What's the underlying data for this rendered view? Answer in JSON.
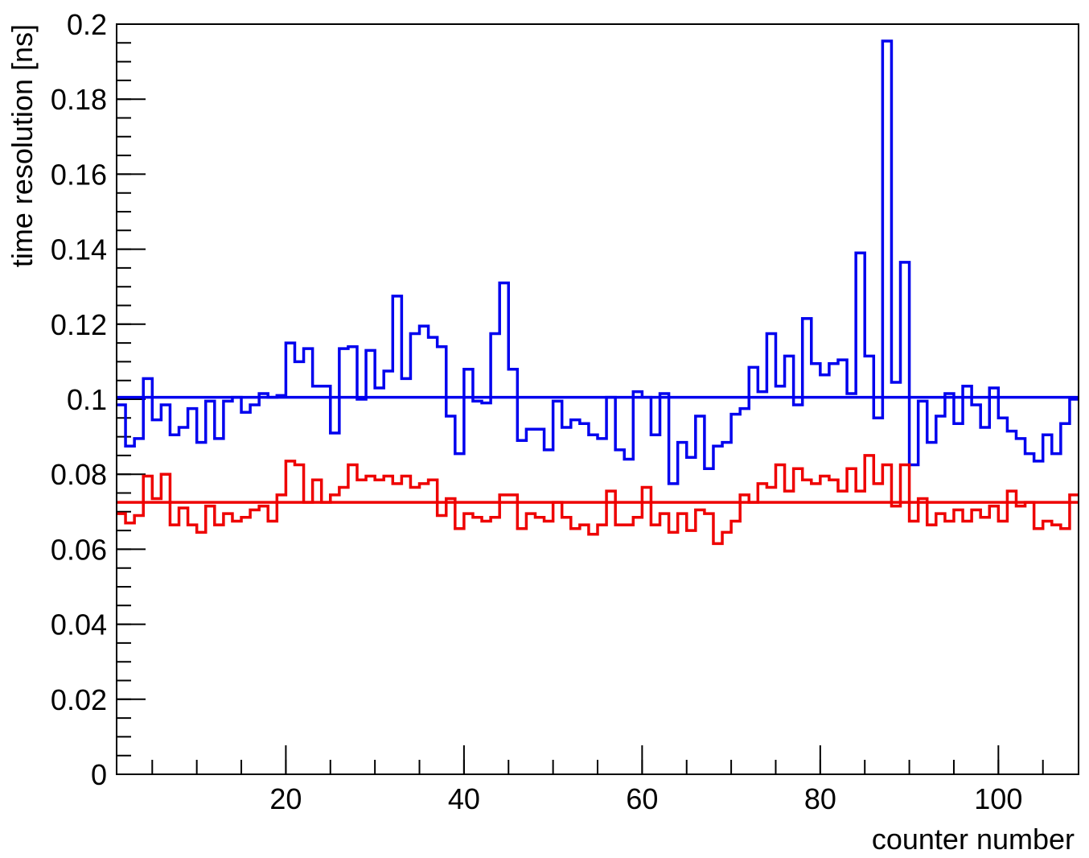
{
  "chart_data": {
    "type": "histogram",
    "xlabel": "counter number",
    "ylabel": "time resolution [ns]",
    "xlim": [
      1,
      109
    ],
    "ylim": [
      0,
      0.2
    ],
    "x_tick_labels": [
      "20",
      "40",
      "60",
      "80",
      "100"
    ],
    "x_ticks": [
      20,
      40,
      60,
      80,
      100
    ],
    "y_tick_labels": [
      "0",
      "0.02",
      "0.04",
      "0.06",
      "0.08",
      "0.1",
      "0.12",
      "0.14",
      "0.16",
      "0.18",
      "0.2"
    ],
    "y_ticks": [
      0,
      0.02,
      0.04,
      0.06,
      0.08,
      0.1,
      0.12,
      0.14,
      0.16,
      0.18,
      0.2
    ],
    "bin_start": 1,
    "bin_width": 1,
    "grid": false,
    "legend": "none",
    "series": [
      {
        "color": "#0000ee",
        "values": [
          0.0985,
          0.0875,
          0.0895,
          0.1055,
          0.0945,
          0.0985,
          0.0905,
          0.0925,
          0.0975,
          0.0885,
          0.0995,
          0.0895,
          0.0995,
          0.1005,
          0.0965,
          0.0985,
          0.1015,
          0.1005,
          0.101,
          0.115,
          0.11,
          0.1135,
          0.1035,
          0.1035,
          0.091,
          0.1135,
          0.114,
          0.1,
          0.113,
          0.103,
          0.1075,
          0.1275,
          0.1055,
          0.1175,
          0.1195,
          0.1165,
          0.114,
          0.0955,
          0.0855,
          0.108,
          0.0995,
          0.099,
          0.1175,
          0.131,
          0.108,
          0.089,
          0.092,
          0.092,
          0.0865,
          0.0995,
          0.0925,
          0.0945,
          0.0935,
          0.0905,
          0.0895,
          0.1005,
          0.0865,
          0.084,
          0.102,
          0.1005,
          0.0905,
          0.1015,
          0.0775,
          0.0885,
          0.0845,
          0.0955,
          0.0815,
          0.0875,
          0.0885,
          0.096,
          0.0975,
          0.1085,
          0.102,
          0.1175,
          0.1035,
          0.1115,
          0.0985,
          0.1215,
          0.1095,
          0.1065,
          0.1095,
          0.1105,
          0.1015,
          0.139,
          0.1115,
          0.095,
          0.1955,
          0.1045,
          0.1365,
          0.0825,
          0.0995,
          0.0885,
          0.0955,
          0.1015,
          0.0935,
          0.1035,
          0.0985,
          0.0925,
          0.103,
          0.095,
          0.0915,
          0.0895,
          0.0855,
          0.0835,
          0.0905,
          0.0855,
          0.0935,
          0.1
        ]
      },
      {
        "color": "#ee0000",
        "values": [
          0.0695,
          0.067,
          0.069,
          0.0795,
          0.0735,
          0.08,
          0.0665,
          0.071,
          0.0665,
          0.0645,
          0.0715,
          0.0665,
          0.0695,
          0.0675,
          0.0685,
          0.0705,
          0.0715,
          0.0675,
          0.0745,
          0.0835,
          0.0825,
          0.0725,
          0.0785,
          0.0725,
          0.0745,
          0.0765,
          0.0825,
          0.0785,
          0.0795,
          0.0785,
          0.0795,
          0.0775,
          0.0795,
          0.0765,
          0.0775,
          0.0785,
          0.069,
          0.0735,
          0.0655,
          0.0695,
          0.0685,
          0.0675,
          0.0685,
          0.0745,
          0.0745,
          0.0655,
          0.0695,
          0.0685,
          0.0675,
          0.0725,
          0.0685,
          0.0655,
          0.0665,
          0.064,
          0.0665,
          0.0755,
          0.0665,
          0.0665,
          0.0685,
          0.0765,
          0.0665,
          0.0695,
          0.0645,
          0.0695,
          0.065,
          0.0705,
          0.0695,
          0.0615,
          0.0645,
          0.0675,
          0.0745,
          0.0725,
          0.0775,
          0.0765,
          0.0825,
          0.0755,
          0.0815,
          0.0785,
          0.0775,
          0.0795,
          0.0785,
          0.0755,
          0.0815,
          0.0755,
          0.085,
          0.0775,
          0.0825,
          0.0715,
          0.0825,
          0.0675,
          0.0735,
          0.0665,
          0.0695,
          0.0675,
          0.0705,
          0.0675,
          0.0705,
          0.0685,
          0.0715,
          0.0675,
          0.0755,
          0.0715,
          0.0725,
          0.0655,
          0.0675,
          0.0665,
          0.0655,
          0.0745
        ]
      }
    ],
    "reference_lines": [
      {
        "color": "#0000ee",
        "y": 0.1005
      },
      {
        "color": "#ee0000",
        "y": 0.0725
      }
    ]
  }
}
